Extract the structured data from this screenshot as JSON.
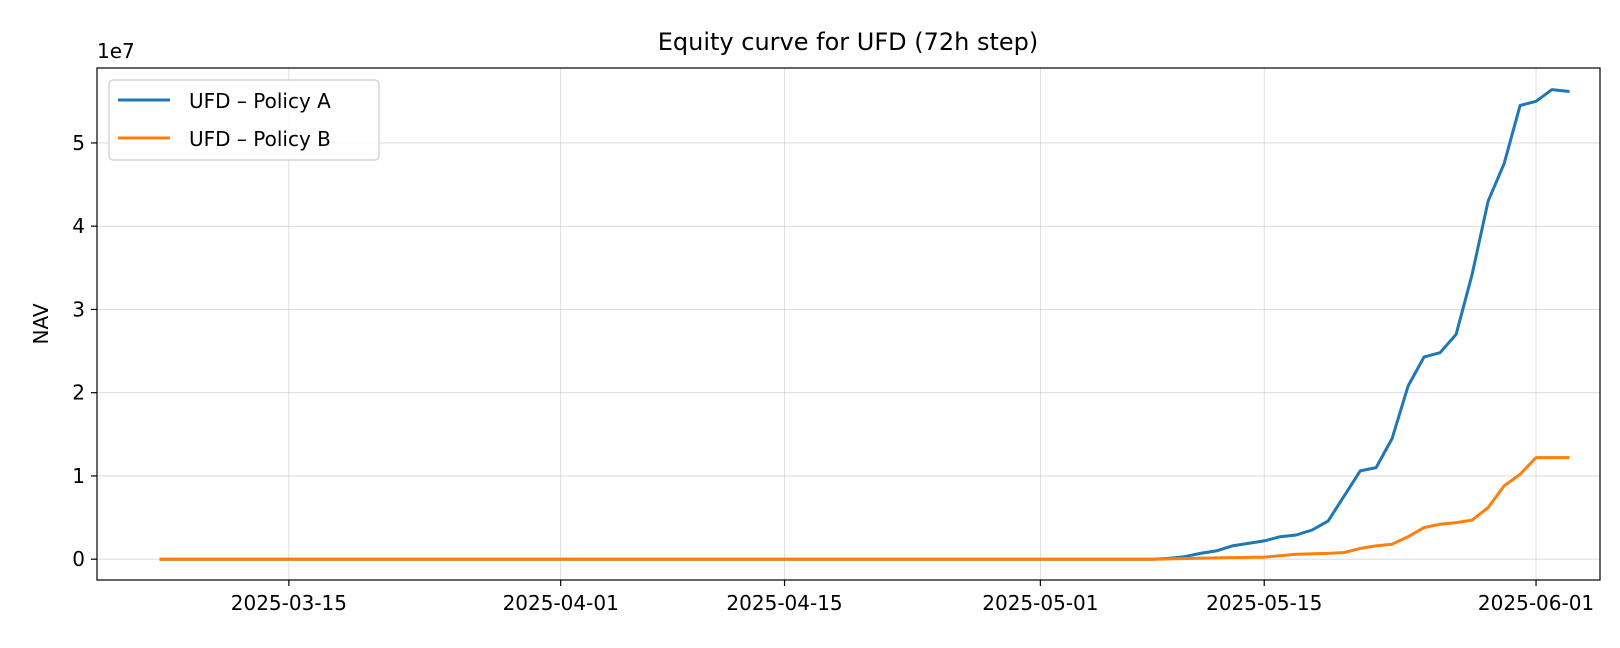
{
  "chart_data": {
    "type": "line",
    "title": "Equity curve for UFD (72h step)",
    "xlabel": "",
    "ylabel": "NAV",
    "y_offset_label": "1e7",
    "y_scale_factor": 10000000,
    "xlim": [
      "2025-03-03",
      "2025-06-05"
    ],
    "ylim": [
      -2500000,
      59000000
    ],
    "x_ticks": [
      "2025-03-15",
      "2025-04-01",
      "2025-04-15",
      "2025-05-01",
      "2025-05-15",
      "2025-06-01"
    ],
    "y_ticks": [
      0,
      1,
      2,
      3,
      4,
      5
    ],
    "grid": true,
    "legend_position": "upper left",
    "series": [
      {
        "name": "UFD – Policy A",
        "color": "#1f77b4",
        "x": [
          "2025-03-07",
          "2025-05-08",
          "2025-05-09",
          "2025-05-10",
          "2025-05-11",
          "2025-05-12",
          "2025-05-13",
          "2025-05-14",
          "2025-05-15",
          "2025-05-16",
          "2025-05-17",
          "2025-05-18",
          "2025-05-19",
          "2025-05-20",
          "2025-05-21",
          "2025-05-22",
          "2025-05-23",
          "2025-05-24",
          "2025-05-25",
          "2025-05-26",
          "2025-05-27",
          "2025-05-28",
          "2025-05-29",
          "2025-05-30",
          "2025-05-31",
          "2025-06-01",
          "2025-06-02",
          "2025-06-03"
        ],
        "y": [
          0,
          0,
          100000,
          300000,
          700000,
          1000000,
          1600000,
          1900000,
          2200000,
          2700000,
          2900000,
          3500000,
          4600000,
          7600000,
          10600000,
          11000000,
          14500000,
          20800000,
          24300000,
          24800000,
          27000000,
          34200000,
          43000000,
          47500000,
          54500000,
          55000000,
          56400000,
          56200000
        ]
      },
      {
        "name": "UFD – Policy B",
        "color": "#ff7f0e",
        "x": [
          "2025-03-07",
          "2025-05-08",
          "2025-05-12",
          "2025-05-15",
          "2025-05-17",
          "2025-05-19",
          "2025-05-20",
          "2025-05-21",
          "2025-05-22",
          "2025-05-23",
          "2025-05-24",
          "2025-05-25",
          "2025-05-26",
          "2025-05-27",
          "2025-05-28",
          "2025-05-29",
          "2025-05-30",
          "2025-05-31",
          "2025-06-01",
          "2025-06-02",
          "2025-06-03"
        ],
        "y": [
          0,
          0,
          150000,
          250000,
          600000,
          700000,
          800000,
          1300000,
          1600000,
          1800000,
          2700000,
          3800000,
          4200000,
          4400000,
          4700000,
          6200000,
          8800000,
          10200000,
          12200000,
          12200000,
          12200000
        ]
      }
    ]
  }
}
